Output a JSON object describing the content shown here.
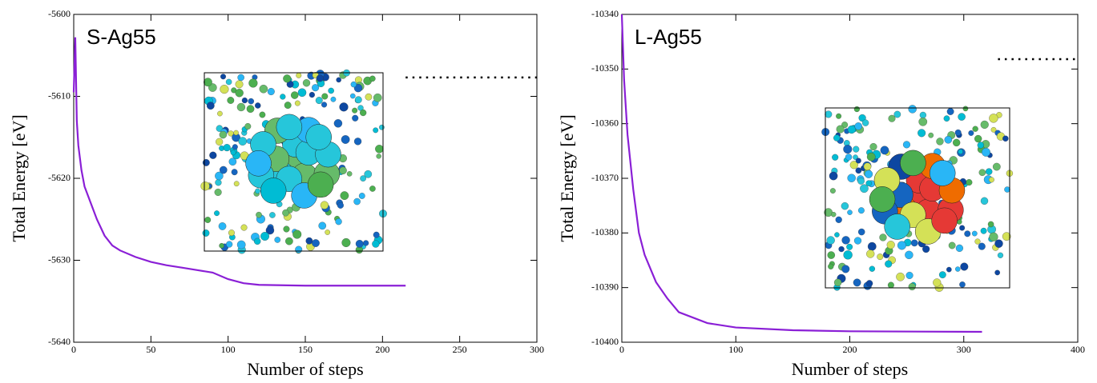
{
  "chart_data": [
    {
      "type": "line",
      "annotation": "S-Ag55",
      "xlabel": "Number of steps",
      "ylabel": "Total Energy [eV]",
      "x": [
        0,
        1,
        2,
        3,
        5,
        7,
        10,
        15,
        20,
        25,
        30,
        40,
        50,
        60,
        70,
        80,
        90,
        100,
        110,
        120,
        150,
        200,
        215
      ],
      "series": [
        {
          "color": "#8a1fd6",
          "values": [
            -5609.5,
            -5602.8,
            -5613,
            -5616,
            -5619,
            -5621,
            -5622.5,
            -5625,
            -5627,
            -5628.2,
            -5628.8,
            -5629.6,
            -5630.2,
            -5630.6,
            -5630.9,
            -5631.2,
            -5631.5,
            -5632.3,
            -5632.8,
            -5633,
            -5633.1,
            -5633.1,
            -5633.1
          ]
        }
      ],
      "reference_line": {
        "y": -5607.7,
        "x": [
          215,
          300
        ],
        "color": "#000000",
        "dotted": true
      },
      "xlim": [
        0,
        300
      ],
      "xticks": [
        0,
        50,
        100,
        150,
        200,
        250,
        300
      ],
      "ylim": [
        -5640,
        -5600
      ],
      "yticks": [
        -5640,
        -5630,
        -5620,
        -5610,
        -5600
      ]
    },
    {
      "type": "line",
      "annotation": "L-Ag55",
      "xlabel": "Number of steps",
      "ylabel": "Total Energy [eV]",
      "x": [
        0,
        2,
        5,
        10,
        15,
        20,
        30,
        40,
        50,
        75,
        100,
        150,
        200,
        316
      ],
      "series": [
        {
          "color": "#8a1fd6",
          "values": [
            -10340,
            -10352,
            -10362,
            -10372,
            -10380,
            -10384,
            -10389,
            -10392,
            -10394.5,
            -10396.5,
            -10397.3,
            -10397.8,
            -10398,
            -10398.1
          ]
        }
      ],
      "reference_line": {
        "y": -10348.2,
        "x": [
          330,
          400
        ],
        "color": "#000000",
        "dotted": true
      },
      "xlim": [
        0,
        400
      ],
      "xticks": [
        0,
        100,
        200,
        300,
        400
      ],
      "ylim": [
        -10400,
        -10340
      ],
      "yticks": [
        -10400,
        -10390,
        -10380,
        -10370,
        -10360,
        -10350,
        -10340
      ]
    }
  ]
}
